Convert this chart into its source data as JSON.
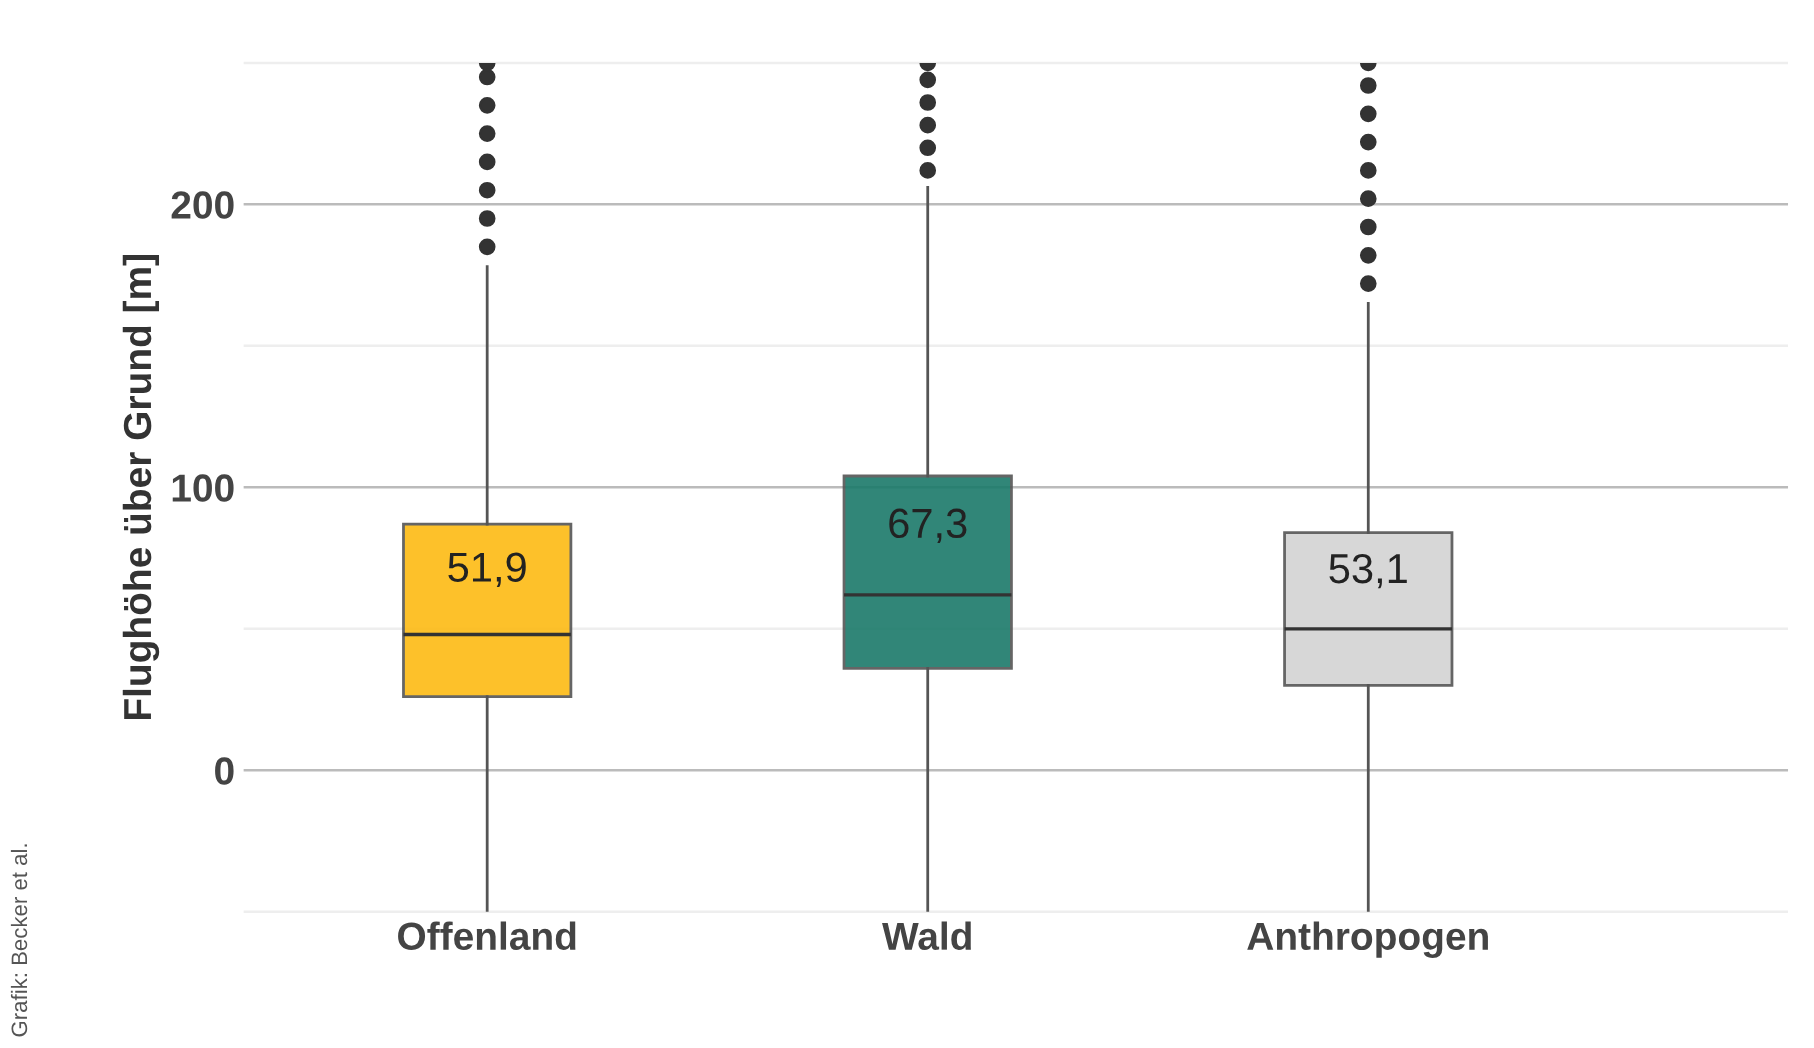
{
  "chart_data": {
    "type": "box",
    "ylabel": "Flughöhe über Grund [m]",
    "categories": [
      "Offenland",
      "Wald",
      "Anthropogen"
    ],
    "colors": [
      "#fdbb14",
      "#1b7a6a",
      "#d3d3d3"
    ],
    "boxes": [
      {
        "low": -50,
        "q1": 26,
        "median": 48,
        "q3": 87,
        "high": 178,
        "outliers": [
          185,
          195,
          205,
          215,
          225,
          235,
          245,
          250
        ]
      },
      {
        "low": -50,
        "q1": 36,
        "median": 62,
        "q3": 104,
        "high": 206,
        "outliers": [
          212,
          220,
          228,
          236,
          244,
          250
        ]
      },
      {
        "low": -50,
        "q1": 30,
        "median": 50,
        "q3": 84,
        "high": 165,
        "outliers": [
          172,
          182,
          192,
          202,
          212,
          222,
          232,
          242,
          250
        ]
      }
    ],
    "ylim": [
      -50,
      250
    ],
    "yticks": [
      {
        "value": -50,
        "label": null
      },
      0,
      {
        "value": 50,
        "label": null
      },
      100,
      {
        "value": 150,
        "label": null
      },
      200,
      {
        "value": 250,
        "label": null
      }
    ],
    "grid": "y",
    "annotations": [
      "51,9",
      "67,3",
      "53,1",
      "Grafik: Becker et al."
    ]
  }
}
